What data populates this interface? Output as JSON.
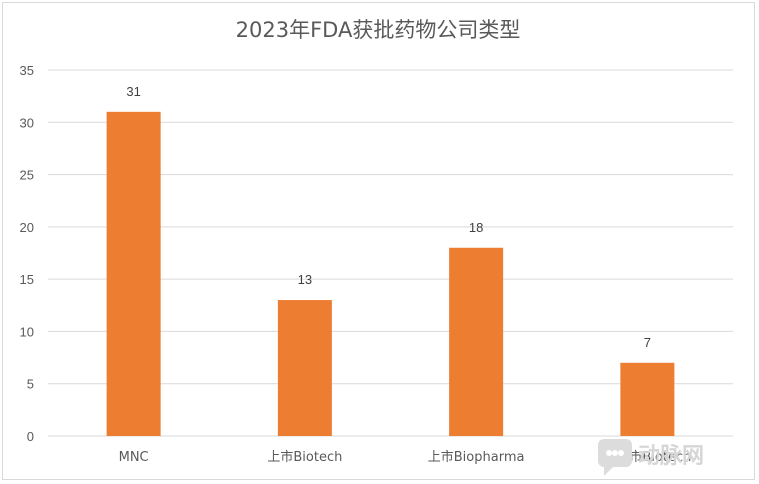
{
  "chart_data": {
    "type": "bar",
    "title": "2023年FDA获批药物公司类型",
    "categories": [
      "MNC",
      "上市Biotech",
      "上市Biopharma",
      "未上市Biotech"
    ],
    "values": [
      31,
      13,
      18,
      7
    ],
    "xlabel": "",
    "ylabel": "",
    "ylim": [
      0,
      35
    ],
    "yticks": [
      0,
      5,
      10,
      15,
      20,
      25,
      30,
      35
    ],
    "grid": true,
    "legend": "none",
    "bar_color": "#ED7D31",
    "grid_color": "#D9D9D9"
  },
  "watermark": {
    "text": "动脉网",
    "icon": "chat-bubble-icon"
  }
}
